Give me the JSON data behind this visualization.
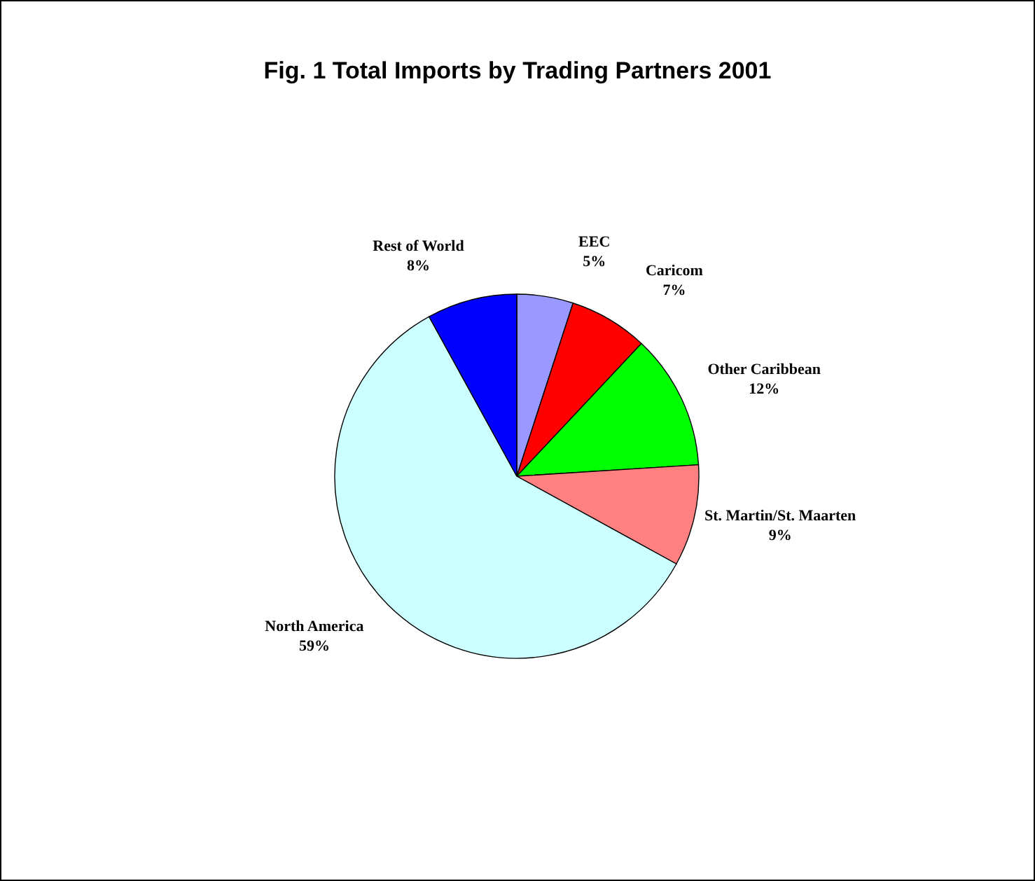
{
  "chart_data": {
    "type": "pie",
    "title": "Fig. 1 Total Imports by Trading Partners 2001",
    "categories": [
      "EEC",
      "Caricom",
      "Other Caribbean",
      "St. Martin/St. Maarten",
      "North America",
      "Rest of World"
    ],
    "values": [
      5,
      7,
      12,
      9,
      59,
      8
    ],
    "colors": [
      "#9999ff",
      "#ff0000",
      "#00ff00",
      "#ff8080",
      "#ccffff",
      "#0000ff"
    ],
    "value_labels": [
      "5%",
      "7%",
      "12%",
      "9%",
      "59%",
      "8%"
    ]
  }
}
